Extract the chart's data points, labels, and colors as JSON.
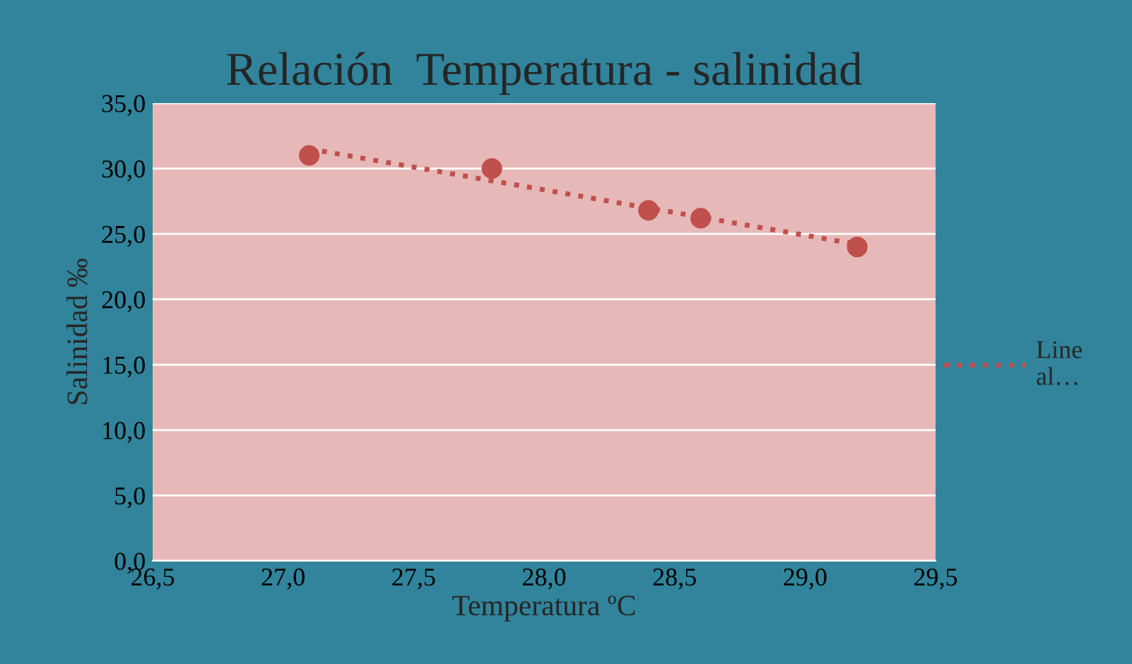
{
  "chart_data": {
    "type": "scatter",
    "title": "Relación  Temperatura - salinidad",
    "xlabel": "Temperatura ºC",
    "ylabel": "Salinidad ‰",
    "x": [
      27.1,
      27.8,
      28.4,
      28.6,
      29.2
    ],
    "series": [
      {
        "color": "#c0504d",
        "values": [
          31.0,
          30.0,
          26.8,
          26.2,
          24.0
        ],
        "marker": "circle"
      },
      {
        "type": "line",
        "name": "Line\nal…",
        "color": "#c0504d",
        "x": [
          27.1,
          29.2
        ],
        "values": [
          31.5,
          24.2
        ],
        "line_style": "dotted",
        "marker": "none"
      }
    ],
    "xlim": [
      26.5,
      29.5
    ],
    "xticks": [
      {
        "value": 26.5,
        "label": "26,5"
      },
      {
        "value": 27.0,
        "label": "27,0"
      },
      {
        "value": 27.5,
        "label": "27,5"
      },
      {
        "value": 28.0,
        "label": "28,0"
      },
      {
        "value": 28.5,
        "label": "28,5"
      },
      {
        "value": 29.0,
        "label": "29,0"
      },
      {
        "value": 29.5,
        "label": "29,5"
      }
    ],
    "ylim": [
      0,
      35
    ],
    "yticks": [
      {
        "value": 0,
        "label": "0,0"
      },
      {
        "value": 5,
        "label": "5,0"
      },
      {
        "value": 10,
        "label": "10,0"
      },
      {
        "value": 15,
        "label": "15,0"
      },
      {
        "value": 20,
        "label": "20,0"
      },
      {
        "value": 25,
        "label": "25,0"
      },
      {
        "value": 30,
        "label": "30,0"
      },
      {
        "value": 35,
        "label": "35,0"
      }
    ],
    "grid": "y",
    "legend": "right"
  }
}
